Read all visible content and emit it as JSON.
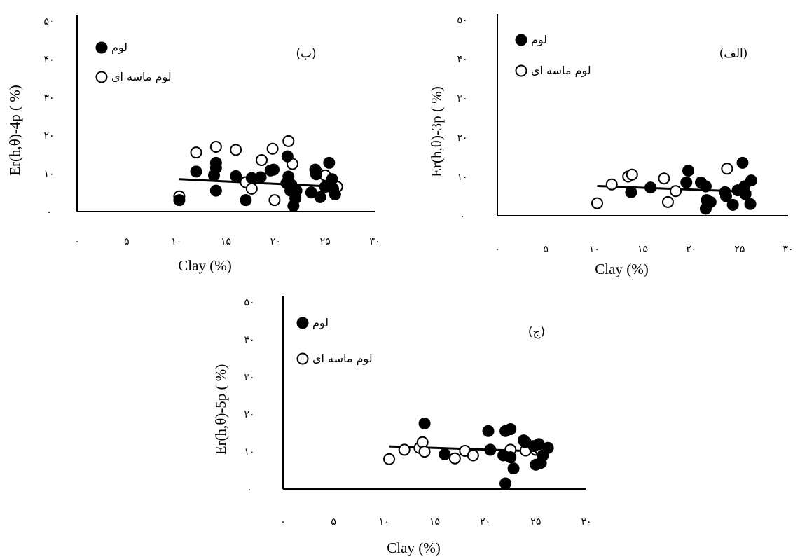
{
  "chart_data": [
    {
      "type": "scatter",
      "panel_label": "(ب)",
      "xlabel": "Clay  (%)",
      "ylabel": "Er(h,θ)-4p ( %)",
      "xlim": [
        0,
        30
      ],
      "ylim": [
        0,
        50
      ],
      "x_ticks": [
        0,
        5,
        10,
        15,
        20,
        25,
        30
      ],
      "x_tick_labels": [
        "۰",
        "۵",
        "۱۰",
        "۱۵",
        "۲۰",
        "۲۵",
        "۳۰"
      ],
      "y_ticks": [
        0,
        10,
        20,
        30,
        40,
        50
      ],
      "y_tick_labels": [
        "۰",
        "۱۰",
        "۲۰",
        "۳۰",
        "۴۰",
        "۵۰"
      ],
      "legend_position": "top-left",
      "series": [
        {
          "name": "لوم",
          "marker": "filled-circle",
          "x": [
            10.3,
            12,
            14,
            14,
            14,
            13.8,
            16,
            17,
            17.6,
            18.5,
            19.8,
            19.5,
            21.2,
            21.3,
            21.1,
            21.6,
            21.8,
            22,
            21.5,
            22.1,
            23.6,
            24,
            24.1,
            24.5,
            25,
            25.4,
            25.7,
            25.8,
            26
          ],
          "y": [
            3,
            10.5,
            12.8,
            11.5,
            5.5,
            9.5,
            9.3,
            3,
            8.8,
            9,
            11,
            10.8,
            14.5,
            9.2,
            7.5,
            7,
            1.5,
            3.5,
            5.5,
            5.5,
            5,
            11,
            9.8,
            3.8,
            6.5,
            12.8,
            8.5,
            6,
            4.5
          ]
        },
        {
          "name": "لوم ماسه ای",
          "marker": "open-circle",
          "x": [
            10.3,
            12,
            14,
            16,
            17,
            17.6,
            18.6,
            19.7,
            19.9,
            21.3,
            21.7,
            24.3,
            25,
            26.2
          ],
          "y": [
            4,
            15.5,
            17,
            16.2,
            7.7,
            6,
            13.5,
            16.5,
            3,
            18.5,
            12.5,
            10,
            9.5,
            6.5
          ]
        }
      ],
      "trendline": {
        "x": [
          10.3,
          26.2
        ],
        "y": [
          8.5,
          6.5
        ]
      }
    },
    {
      "type": "scatter",
      "panel_label": "(الف)",
      "xlabel": "Clay  (%)",
      "ylabel": "Er(h,θ)-3p ( %)",
      "xlim": [
        0,
        30
      ],
      "ylim": [
        0,
        50
      ],
      "x_ticks": [
        0,
        5,
        10,
        15,
        20,
        25,
        30
      ],
      "x_tick_labels": [
        "۰",
        "۵",
        "۱۰",
        "۱۵",
        "۲۰",
        "۲۵",
        "۳۰"
      ],
      "y_ticks": [
        0,
        10,
        20,
        30,
        40,
        50
      ],
      "y_tick_labels": [
        "۰",
        "۱۰",
        "۲۰",
        "۳۰",
        "۴۰",
        "۵۰"
      ],
      "legend_position": "top-left",
      "series": [
        {
          "name": "لوم",
          "marker": "filled-circle",
          "x": [
            13.8,
            15.8,
            19.7,
            19.5,
            21,
            21.5,
            21.6,
            21.5,
            22,
            23.5,
            23.6,
            24.3,
            24.8,
            25.3,
            25.5,
            25.6,
            26.2,
            26.1
          ],
          "y": [
            6,
            7.2,
            11.5,
            8.5,
            8.5,
            7.5,
            4,
            1.8,
            3.5,
            6,
            5,
            2.8,
            6.5,
            13.5,
            7.5,
            5.5,
            9,
            3
          ]
        },
        {
          "name": "لوم ماسه ای",
          "marker": "open-circle",
          "x": [
            10.3,
            11.8,
            13.5,
            13.9,
            17.2,
            17.6,
            18.4,
            23.7
          ],
          "y": [
            3.2,
            8,
            10,
            10.5,
            9.5,
            3.5,
            6.3,
            12
          ]
        }
      ],
      "trendline": {
        "x": [
          10.3,
          26.2
        ],
        "y": [
          7.6,
          6.1
        ]
      }
    },
    {
      "type": "scatter",
      "panel_label": "(ج)",
      "xlabel": "Clay  (%)",
      "ylabel": "Er(h,θ)-5p ( %)",
      "xlim": [
        0,
        30
      ],
      "ylim": [
        0,
        50
      ],
      "x_ticks": [
        0,
        5,
        10,
        15,
        20,
        25,
        30
      ],
      "x_tick_labels": [
        "۰",
        "۵",
        "۱۰",
        "۱۵",
        "۲۰",
        "۲۵",
        "۳۰"
      ],
      "y_ticks": [
        0,
        10,
        20,
        30,
        40,
        50
      ],
      "y_tick_labels": [
        "۰",
        "۱۰",
        "۲۰",
        "۳۰",
        "۴۰",
        "۵۰"
      ],
      "legend_position": "top-left",
      "series": [
        {
          "name": "لوم",
          "marker": "filled-circle",
          "x": [
            14,
            16,
            20.3,
            20.5,
            22,
            22.5,
            21.8,
            22,
            22.5,
            22.8,
            23.8,
            24,
            24.8,
            25,
            25.3,
            25.5,
            25.7,
            26.2
          ],
          "y": [
            17.5,
            9.3,
            15.5,
            10.5,
            15.5,
            16,
            9,
            1.5,
            8.5,
            5.5,
            13,
            12.5,
            11.5,
            6.5,
            12,
            7,
            9,
            11
          ]
        },
        {
          "name": "لوم ماسه ای",
          "marker": "open-circle",
          "x": [
            10.5,
            12,
            13.5,
            13.8,
            14,
            17,
            18,
            18.8,
            22.5,
            24,
            25,
            25.5
          ],
          "y": [
            8,
            10.5,
            11,
            12.5,
            10,
            8.2,
            10.2,
            9,
            10.5,
            10.3,
            10.5,
            10.3
          ]
        }
      ],
      "trendline": {
        "x": [
          10.5,
          26.2
        ],
        "y": [
          11.4,
          10
        ]
      }
    }
  ]
}
